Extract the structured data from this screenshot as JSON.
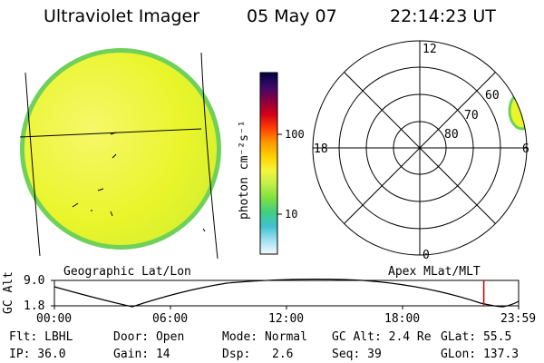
{
  "header": {
    "instrument": "Ultraviolet Imager",
    "date": "05 May 07",
    "time": "22:14:23 UT"
  },
  "left_panel": {
    "caption": "Geographic Lat/Lon",
    "disk_color": "#e9f52a",
    "rim_color": "#6fd05a"
  },
  "colorbar": {
    "label": "photon cm⁻²s⁻¹",
    "tick_100": "100",
    "tick_10": "10",
    "stops": [
      "#000040",
      "#3a0a6a",
      "#8a0040",
      "#d4001a",
      "#ff4000",
      "#ff9a00",
      "#ffd000",
      "#f5f53a",
      "#c0f04a",
      "#7ee040",
      "#40d080",
      "#40c0d0",
      "#a0e0f0",
      "#f4f8ff"
    ]
  },
  "right_panel": {
    "caption": "Apex MLat/MLT",
    "mlt_top": "12",
    "mlt_left": "18",
    "mlt_right": "6",
    "mlt_bottom": "0",
    "lat_60": "60",
    "lat_70": "70",
    "lat_80": "80",
    "aurora_color": "#e9f52a"
  },
  "orbit": {
    "ylabel": "GC Alt",
    "y_top": "9.0",
    "y_bottom": "1.8",
    "x_ticks": [
      "00:00",
      "06:00",
      "12:00",
      "18:00",
      "23:59"
    ],
    "current_time_fraction": 0.925,
    "marker_color": "#d00000"
  },
  "status": {
    "flt": "Flt: LBHL",
    "door": "Door: Open",
    "mode": "Mode: Normal",
    "gc_alt": "GC Alt: 2.4 Re",
    "glat": "GLat:  55.5",
    "ip": "IP: 36.0",
    "gain": "Gain: 14",
    "dsp_label": "Dsp:",
    "dsp_value": "2.6",
    "seq": "Seq: 39",
    "glon": "GLon: 137.3"
  }
}
